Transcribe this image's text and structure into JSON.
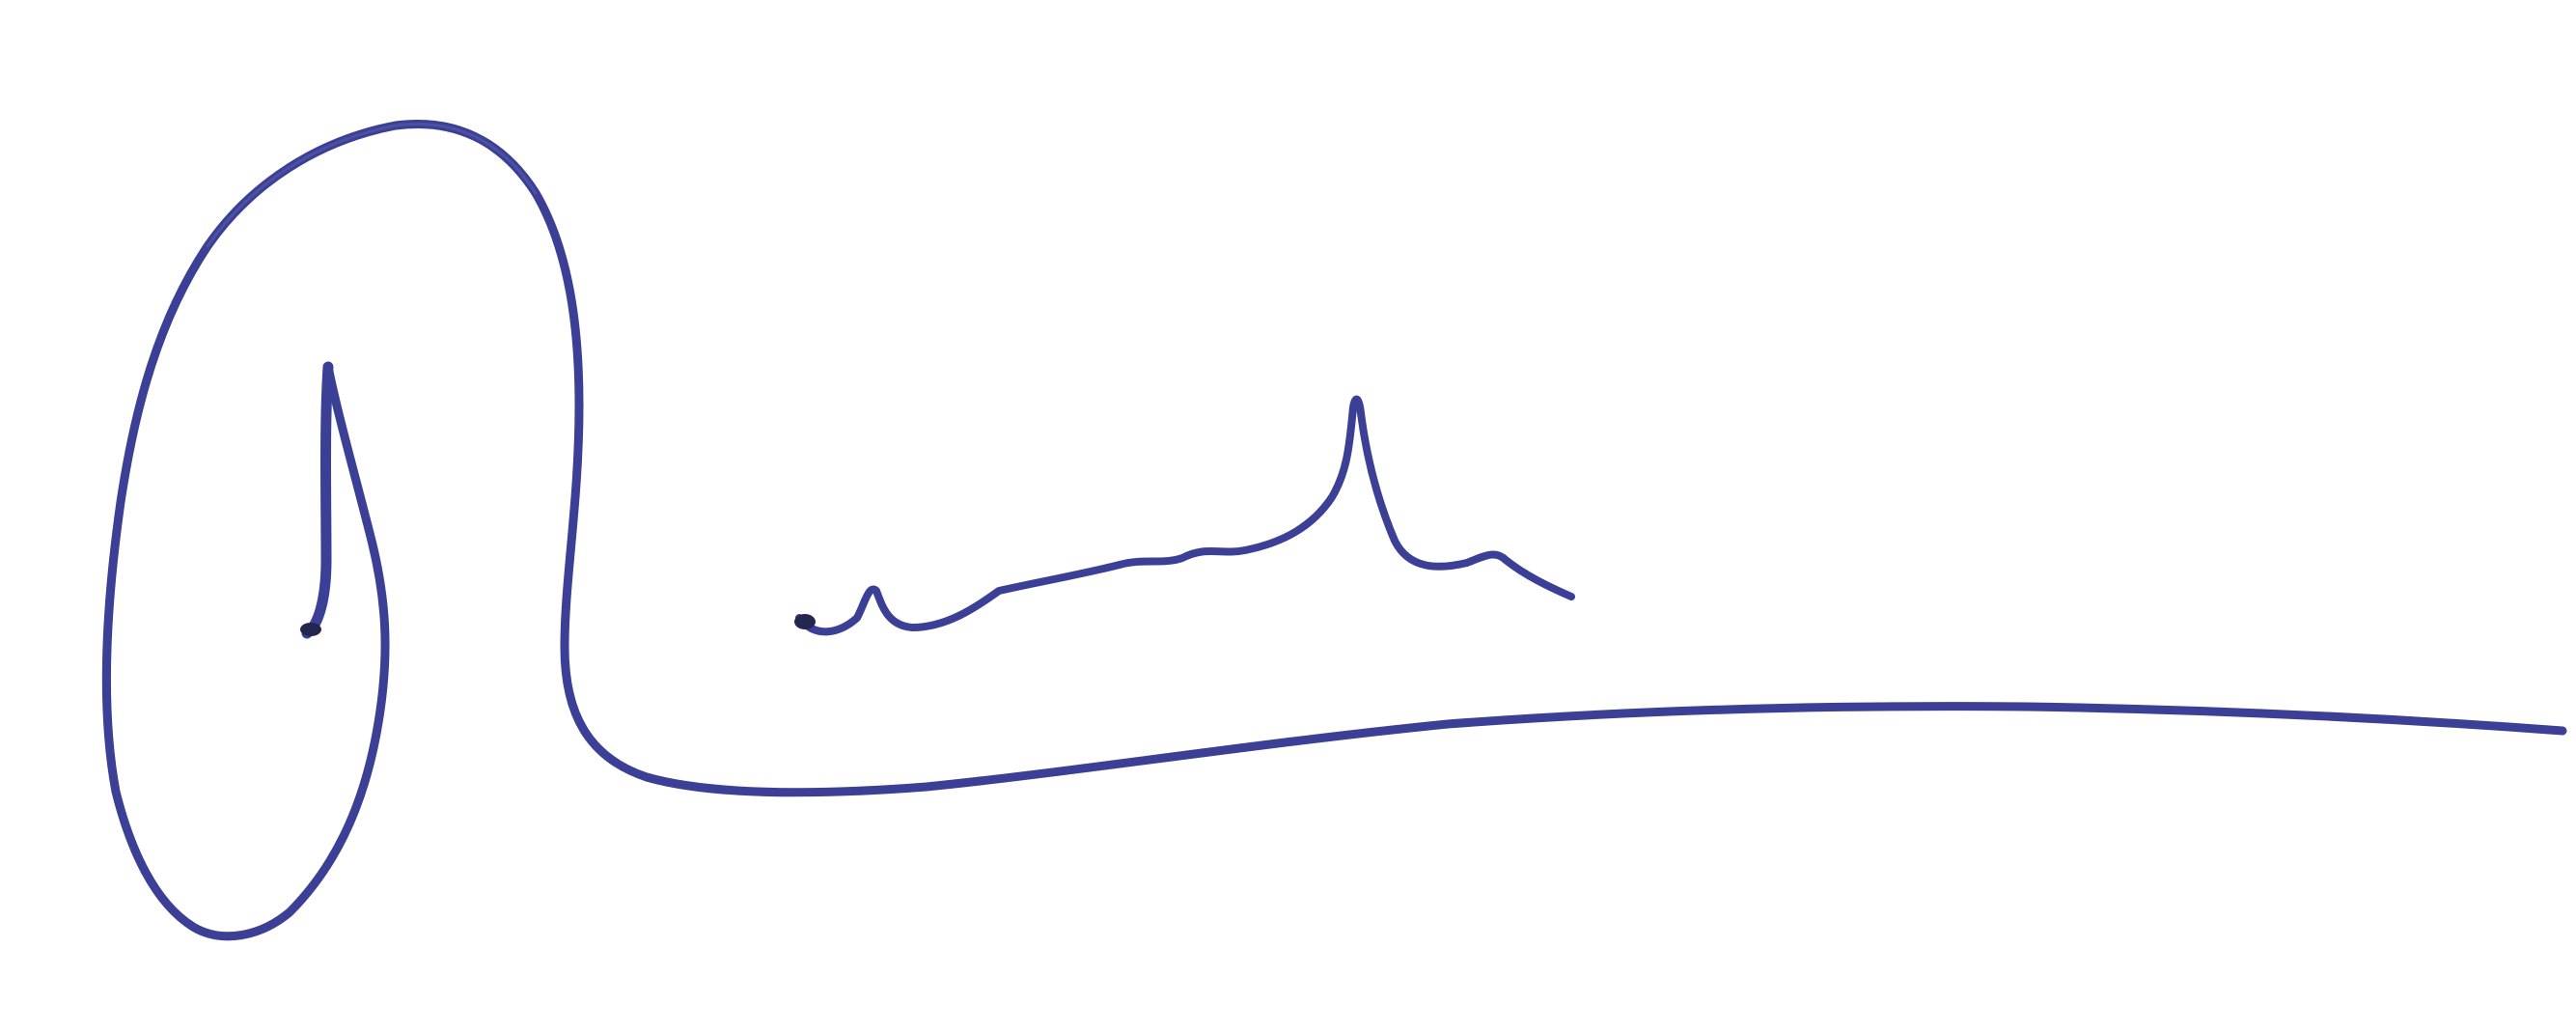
{
  "image": {
    "background_color": "#ffffff",
    "ink_color": "#3b3f95",
    "ink_dark_color": "#23264f",
    "ink_light_color": "#6b70b5"
  }
}
